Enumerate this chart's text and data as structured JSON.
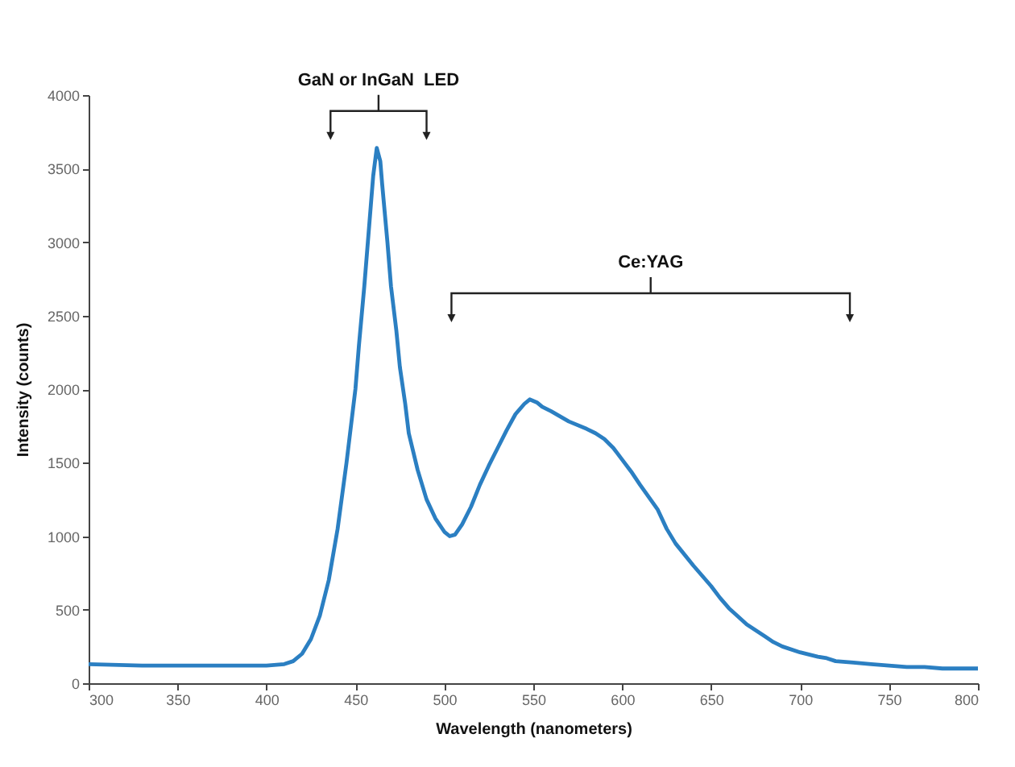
{
  "chart_data": {
    "type": "line",
    "xlabel": "Wavelength (nanometers)",
    "ylabel": "Intensity (counts)",
    "x": [
      300,
      330,
      350,
      380,
      400,
      410,
      415,
      420,
      425,
      430,
      435,
      440,
      445,
      450,
      452,
      455,
      457,
      460,
      462,
      464,
      465,
      468,
      470,
      473,
      475,
      478,
      480,
      485,
      490,
      495,
      500,
      503,
      506,
      510,
      515,
      520,
      525,
      530,
      535,
      540,
      545,
      548,
      552,
      555,
      560,
      570,
      580,
      585,
      590,
      595,
      600,
      605,
      610,
      620,
      625,
      630,
      640,
      650,
      655,
      660,
      670,
      680,
      685,
      690,
      700,
      710,
      715,
      720,
      730,
      740,
      750,
      760,
      770,
      780,
      790,
      800
    ],
    "series": [
      {
        "color": "#2b7fc2",
        "values": [
          130,
          120,
          120,
          120,
          120,
          130,
          150,
          200,
          300,
          460,
          700,
          1050,
          1500,
          2000,
          2300,
          2700,
          3000,
          3450,
          3640,
          3550,
          3400,
          3000,
          2700,
          2400,
          2150,
          1900,
          1700,
          1450,
          1250,
          1120,
          1030,
          1000,
          1010,
          1080,
          1200,
          1350,
          1480,
          1600,
          1720,
          1830,
          1900,
          1930,
          1910,
          1880,
          1850,
          1780,
          1730,
          1700,
          1660,
          1600,
          1520,
          1440,
          1350,
          1180,
          1050,
          950,
          800,
          660,
          580,
          510,
          400,
          320,
          280,
          250,
          210,
          180,
          170,
          150,
          140,
          130,
          120,
          110,
          110,
          100,
          100,
          100
        ]
      }
    ],
    "xlim": [
      300,
      800
    ],
    "ylim": [
      0,
      4000
    ],
    "xticks": [
      300,
      350,
      400,
      450,
      500,
      550,
      600,
      650,
      700,
      750,
      800
    ],
    "yticks": [
      0,
      500,
      1000,
      1500,
      2000,
      2500,
      3000,
      3500,
      4000
    ],
    "grid": false,
    "legend": false,
    "annotations": [
      "GaN or InGaN  LED",
      "Ce:YAG"
    ]
  }
}
